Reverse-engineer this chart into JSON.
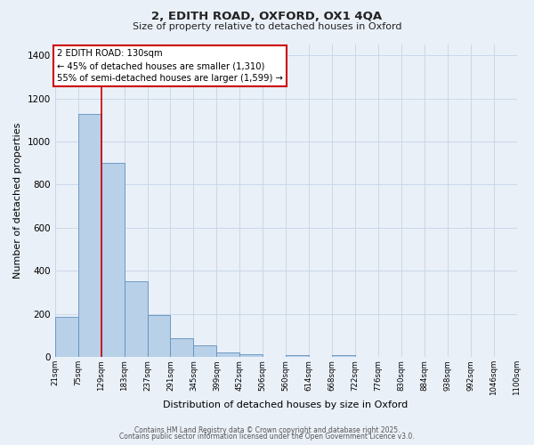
{
  "title": "2, EDITH ROAD, OXFORD, OX1 4QA",
  "subtitle": "Size of property relative to detached houses in Oxford",
  "xlabel": "Distribution of detached houses by size in Oxford",
  "ylabel": "Number of detached properties",
  "background_color": "#eaf0f8",
  "bar_color": "#b8d0e8",
  "bar_edge_color": "#6090c0",
  "grid_color": "#c8d8e8",
  "bins": [
    21,
    75,
    129,
    183,
    237,
    291,
    345,
    399,
    452,
    506,
    560,
    614,
    668,
    722,
    776,
    830,
    884,
    938,
    992,
    1046,
    1100
  ],
  "bin_labels": [
    "21sqm",
    "75sqm",
    "129sqm",
    "183sqm",
    "237sqm",
    "291sqm",
    "345sqm",
    "399sqm",
    "452sqm",
    "506sqm",
    "560sqm",
    "614sqm",
    "668sqm",
    "722sqm",
    "776sqm",
    "830sqm",
    "884sqm",
    "938sqm",
    "992sqm",
    "1046sqm",
    "1100sqm"
  ],
  "counts": [
    185,
    1130,
    900,
    350,
    195,
    88,
    55,
    20,
    12,
    0,
    10,
    0,
    10,
    0,
    0,
    0,
    0,
    0,
    0,
    0
  ],
  "property_line_x": 129,
  "annotation_title": "2 EDITH ROAD: 130sqm",
  "annotation_line1": "← 45% of detached houses are smaller (1,310)",
  "annotation_line2": "55% of semi-detached houses are larger (1,599) →",
  "annotation_box_color": "white",
  "annotation_box_edge": "#cc0000",
  "red_line_color": "#cc0000",
  "ylim": [
    0,
    1450
  ],
  "yticks": [
    0,
    200,
    400,
    600,
    800,
    1000,
    1200,
    1400
  ],
  "footer1": "Contains HM Land Registry data © Crown copyright and database right 2025.",
  "footer2": "Contains public sector information licensed under the Open Government Licence v3.0."
}
